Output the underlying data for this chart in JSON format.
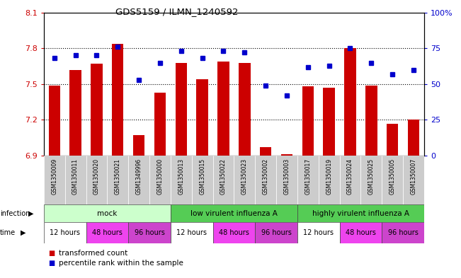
{
  "title": "GDS5159 / ILMN_1240592",
  "samples": [
    "GSM1350009",
    "GSM1350011",
    "GSM1350020",
    "GSM1350021",
    "GSM1349996",
    "GSM1350000",
    "GSM1350013",
    "GSM1350015",
    "GSM1350022",
    "GSM1350023",
    "GSM1350002",
    "GSM1350003",
    "GSM1350017",
    "GSM1350019",
    "GSM1350024",
    "GSM1350025",
    "GSM1350005",
    "GSM1350007"
  ],
  "bar_values": [
    7.49,
    7.62,
    7.67,
    7.84,
    7.07,
    7.43,
    7.68,
    7.54,
    7.69,
    7.68,
    6.97,
    6.91,
    7.48,
    7.47,
    7.8,
    7.49,
    7.17,
    7.2
  ],
  "blue_values": [
    68,
    70,
    70,
    76,
    53,
    65,
    73,
    68,
    73,
    72,
    49,
    42,
    62,
    63,
    75,
    65,
    57,
    60
  ],
  "ylim_left": [
    6.9,
    8.1
  ],
  "ylim_right": [
    0,
    100
  ],
  "yticks_left": [
    6.9,
    7.2,
    7.5,
    7.8,
    8.1
  ],
  "yticks_right": [
    0,
    25,
    50,
    75,
    100
  ],
  "ytick_labels_left": [
    "6.9",
    "7.2",
    "7.5",
    "7.8",
    "8.1"
  ],
  "ytick_labels_right": [
    "0",
    "25",
    "50",
    "75",
    "100%"
  ],
  "hlines": [
    7.2,
    7.5,
    7.8
  ],
  "bar_color": "#cc0000",
  "blue_color": "#0000cc",
  "bar_bottom": 6.9,
  "infection_colors": [
    "#ccffcc",
    "#55cc55",
    "#55cc55"
  ],
  "infection_labels": [
    "mock",
    "low virulent influenza A",
    "highly virulent influenza A"
  ],
  "time_colors": [
    "#ffffff",
    "#ee44ee",
    "#cc44cc"
  ],
  "time_labels": [
    "12 hours",
    "48 hours",
    "96 hours"
  ],
  "legend_labels": [
    "transformed count",
    "percentile rank within the sample"
  ],
  "legend_colors": [
    "#cc0000",
    "#0000cc"
  ],
  "left_axis_color": "#cc0000",
  "right_axis_color": "#0000cc",
  "xtick_bg_color": "#cccccc",
  "background_color": "#ffffff"
}
